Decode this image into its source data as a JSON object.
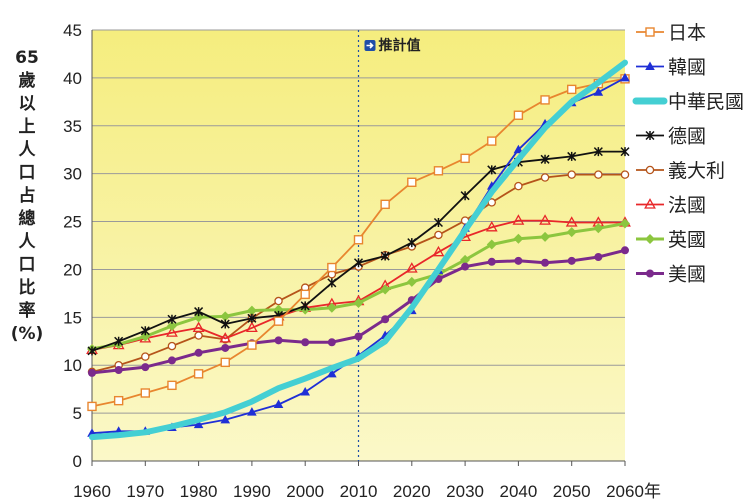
{
  "chart_data": {
    "type": "line",
    "ylabel": "65歲以上人口占總人口比率(%)",
    "xlabel": "",
    "x_suffix": "年",
    "ylim": [
      0,
      45
    ],
    "xlim": [
      1960,
      2060
    ],
    "yticks": [
      0,
      5,
      10,
      15,
      20,
      25,
      30,
      35,
      40,
      45
    ],
    "xticks": [
      1960,
      1970,
      1980,
      1990,
      2000,
      2010,
      2020,
      2030,
      2040,
      2050,
      2060
    ],
    "grid": "horizontal",
    "legend_position": "right",
    "annotation": {
      "text": "推計值",
      "x": 2010
    },
    "background_colors": [
      "#fbf8c8",
      "#f5ed7e"
    ],
    "series": [
      {
        "name": "日本",
        "color": "#e8862f",
        "marker": "square-open",
        "x": [
          1960,
          1965,
          1970,
          1975,
          1980,
          1985,
          1990,
          1995,
          2000,
          2005,
          2010,
          2015,
          2020,
          2025,
          2030,
          2035,
          2040,
          2045,
          2050,
          2055,
          2060
        ],
        "y": [
          5.7,
          6.3,
          7.1,
          7.9,
          9.1,
          10.3,
          12.1,
          14.6,
          17.4,
          20.2,
          23.1,
          26.8,
          29.1,
          30.3,
          31.6,
          33.4,
          36.1,
          37.7,
          38.8,
          39.4,
          39.9
        ]
      },
      {
        "name": "韓國",
        "color": "#1f2fd6",
        "marker": "triangle-filled",
        "x": [
          1960,
          1965,
          1970,
          1975,
          1980,
          1985,
          1990,
          1995,
          2000,
          2005,
          2010,
          2015,
          2020,
          2025,
          2030,
          2035,
          2040,
          2045,
          2050,
          2055,
          2060
        ],
        "y": [
          2.9,
          3.1,
          3.1,
          3.5,
          3.8,
          4.3,
          5.1,
          5.9,
          7.2,
          9.1,
          11.0,
          13.1,
          15.7,
          19.9,
          24.3,
          28.7,
          32.5,
          35.2,
          37.4,
          38.5,
          40.0
        ]
      },
      {
        "name": "中華民國",
        "color": "#44cfd3",
        "marker": "none",
        "x": [
          1960,
          1965,
          1970,
          1975,
          1980,
          1985,
          1990,
          1995,
          2000,
          2005,
          2010,
          2015,
          2020,
          2025,
          2030,
          2035,
          2040,
          2045,
          2050,
          2055,
          2060
        ],
        "y": [
          2.5,
          2.7,
          3.0,
          3.6,
          4.3,
          5.1,
          6.2,
          7.6,
          8.6,
          9.7,
          10.7,
          12.5,
          16.0,
          20.0,
          24.1,
          28.1,
          31.5,
          34.8,
          37.5,
          39.5,
          41.6
        ]
      },
      {
        "name": "德國",
        "color": "#111111",
        "marker": "asterisk",
        "x": [
          1960,
          1965,
          1970,
          1975,
          1980,
          1985,
          1990,
          1995,
          2000,
          2005,
          2010,
          2015,
          2020,
          2025,
          2030,
          2035,
          2040,
          2045,
          2050,
          2055,
          2060
        ],
        "y": [
          11.5,
          12.5,
          13.6,
          14.8,
          15.6,
          14.3,
          14.9,
          15.2,
          16.2,
          18.6,
          20.7,
          21.4,
          22.8,
          24.9,
          27.7,
          30.4,
          31.2,
          31.5,
          31.8,
          32.3,
          32.3
        ]
      },
      {
        "name": "義大利",
        "color": "#b5541a",
        "marker": "circle-open",
        "x": [
          1960,
          1965,
          1970,
          1975,
          1980,
          1985,
          1990,
          1995,
          2000,
          2005,
          2010,
          2015,
          2020,
          2025,
          2030,
          2035,
          2040,
          2045,
          2050,
          2055,
          2060
        ],
        "y": [
          9.3,
          10.0,
          10.9,
          12.0,
          13.1,
          12.7,
          14.9,
          16.7,
          18.1,
          19.5,
          20.3,
          21.5,
          22.4,
          23.6,
          25.1,
          27.0,
          28.7,
          29.6,
          29.9,
          29.9,
          29.9
        ]
      },
      {
        "name": "法國",
        "color": "#e8272a",
        "marker": "triangle-open",
        "x": [
          1960,
          1965,
          1970,
          1975,
          1980,
          1985,
          1990,
          1995,
          2000,
          2005,
          2010,
          2015,
          2020,
          2025,
          2030,
          2035,
          2040,
          2045,
          2050,
          2055,
          2060
        ],
        "y": [
          11.6,
          12.1,
          12.8,
          13.4,
          13.9,
          12.8,
          13.9,
          15.1,
          16.0,
          16.4,
          16.7,
          18.3,
          20.1,
          21.8,
          23.4,
          24.4,
          25.1,
          25.1,
          24.9,
          24.9,
          24.9
        ]
      },
      {
        "name": "英國",
        "color": "#8cc63f",
        "marker": "diamond-filled",
        "x": [
          1960,
          1965,
          1970,
          1975,
          1980,
          1985,
          1990,
          1995,
          2000,
          2005,
          2010,
          2015,
          2020,
          2025,
          2030,
          2035,
          2040,
          2045,
          2050,
          2055,
          2060
        ],
        "y": [
          11.7,
          12.2,
          13.0,
          14.1,
          15.0,
          15.1,
          15.7,
          15.8,
          15.8,
          16.0,
          16.5,
          17.9,
          18.7,
          19.5,
          21.0,
          22.6,
          23.2,
          23.4,
          23.9,
          24.3,
          24.8
        ]
      },
      {
        "name": "美國",
        "color": "#7b2a8c",
        "marker": "dot-filled",
        "x": [
          1960,
          1965,
          1970,
          1975,
          1980,
          1985,
          1990,
          1995,
          2000,
          2005,
          2010,
          2015,
          2020,
          2025,
          2030,
          2035,
          2040,
          2045,
          2050,
          2055,
          2060
        ],
        "y": [
          9.2,
          9.5,
          9.8,
          10.5,
          11.3,
          11.8,
          12.3,
          12.6,
          12.4,
          12.4,
          13.0,
          14.8,
          16.8,
          19.0,
          20.3,
          20.8,
          20.9,
          20.7,
          20.9,
          21.3,
          22.0
        ]
      }
    ]
  }
}
